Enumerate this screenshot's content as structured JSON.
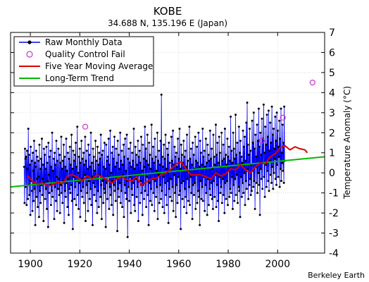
{
  "chart_data": {
    "type": "line",
    "title": "KOBE",
    "subtitle": "34.688 N, 135.196 E (Japan)",
    "xlabel": "",
    "ylabel": "Temperature Anomaly (°C)",
    "xlim": [
      1892,
      2019
    ],
    "ylim": [
      -4,
      7
    ],
    "x_ticks": [
      1900,
      1920,
      1940,
      1960,
      1980,
      2000
    ],
    "y_ticks": [
      -4,
      -3,
      -2,
      -1,
      0,
      1,
      2,
      3,
      4,
      5,
      6,
      7
    ],
    "grid": true,
    "legend_position": "top-left",
    "credit": "Berkeley Earth",
    "colors": {
      "raw": "#0000ee",
      "raw_marker": "#000000",
      "qc": "#cc33cc",
      "moving_average": "#dd0000",
      "trend": "#00bb00"
    },
    "series": [
      {
        "name": "Raw Monthly Data",
        "sample_every_months": 2,
        "x_start": 1897.5,
        "values": [
          0.3,
          -1.5,
          1.2,
          0.7,
          -0.7,
          0.8,
          -1.6,
          1.1,
          0.2,
          -1.3,
          2.2,
          -0.6,
          0.9,
          -1.1,
          0.4,
          -2.1,
          1.3,
          -0.4,
          0.6,
          -0.9,
          -1.9,
          1.0,
          0.1,
          -1.4,
          1.6,
          -0.8,
          0.5,
          -2.6,
          0.3,
          1.1,
          -1.2,
          -0.3,
          0.8,
          -1.7,
          0.6,
          -0.2,
          -2.2,
          1.4,
          -0.9,
          0.2,
          -1.5,
          0.7,
          -0.6,
          1.7,
          -1.1,
          -0.3,
          0.4,
          -2.4,
          1.2,
          -0.5,
          0.9,
          -1.3,
          0.2,
          -0.8,
          1.3,
          -1.8,
          0.5,
          -0.4,
          -2.7,
          1.5,
          -0.1,
          -1.0,
          0.8,
          -0.6,
          1.1,
          -1.6,
          0.3,
          -0.9,
          2.0,
          -1.2,
          0.1,
          -0.5,
          0.7,
          -2.3,
          1.0,
          -0.7,
          0.4,
          -1.4,
          1.6,
          -0.2,
          -1.9,
          0.6,
          -0.8,
          1.2,
          -0.3,
          -1.1,
          0.9,
          -2.0,
          0.5,
          -0.6,
          1.8,
          -1.0,
          0.2,
          -1.5,
          0.6,
          -0.4,
          1.4,
          -2.5,
          0.8,
          -0.9,
          0.3,
          -1.2,
          1.7,
          -0.5,
          0.1,
          -1.7,
          1.0,
          -0.3,
          -2.1,
          0.7,
          -0.8,
          1.3,
          -1.0,
          0.4,
          -0.6,
          1.9,
          -1.4,
          0.2,
          -2.8,
          1.1,
          -0.2,
          0.6,
          -1.3,
          0.9,
          -0.7,
          1.5,
          -1.6,
          0.3,
          -0.4,
          2.3,
          -1.1,
          0.0,
          -1.8,
          0.8,
          -0.5,
          1.2,
          -2.2,
          0.5,
          -0.9,
          1.6,
          -0.3,
          -1.2,
          0.7,
          -0.7,
          1.0,
          -1.5,
          0.4,
          -0.1,
          1.8,
          -2.4,
          0.6,
          -0.6,
          1.1,
          -1.0,
          0.2,
          -1.9,
          1.4,
          -0.4,
          0.9,
          -1.3,
          0.3,
          -0.8,
          2.0,
          -1.6,
          0.5,
          -0.2,
          -2.6,
          1.2,
          -0.5,
          0.8,
          -1.1,
          0.1,
          -0.7,
          1.6,
          -1.4,
          0.6,
          -0.3,
          -2.0,
          1.3,
          -0.9,
          0.4,
          -1.7,
          1.0,
          -0.1,
          0.7,
          -1.2,
          1.9,
          -0.6,
          -2.3,
          0.9,
          -0.4,
          1.1,
          -1.5,
          0.3,
          -0.8,
          1.5,
          -1.0,
          0.2,
          -2.7,
          1.4,
          -0.5,
          0.6,
          -1.3,
          0.8,
          -0.2,
          1.7,
          -1.8,
          0.4,
          -0.7,
          2.1,
          -1.1,
          0.0,
          -1.6,
          1.0,
          -0.4,
          1.3,
          -2.1,
          0.7,
          -0.6,
          1.8,
          -0.9,
          0.3,
          -1.4,
          1.2,
          -0.3,
          0.5,
          -2.9,
          1.6,
          -0.8,
          0.9,
          -1.2,
          0.2,
          -0.5,
          2.0,
          -1.5,
          0.6,
          -0.9,
          1.1,
          -1.7,
          0.4,
          -0.1,
          1.4,
          -2.2,
          0.8,
          -0.6,
          1.7,
          -1.0,
          0.1,
          -1.3,
          1.9,
          -0.4,
          -3.2,
          0.7,
          -0.7,
          1.2,
          -1.4,
          0.5,
          -0.2,
          1.5,
          -2.0,
          0.3,
          -0.8,
          1.0,
          -1.1,
          0.6,
          -0.5,
          2.2,
          -1.6,
          0.2,
          -1.9,
          1.3,
          -0.3,
          0.9,
          -1.2,
          0.4,
          -0.7,
          1.6,
          -2.4,
          0.8,
          -0.1,
          1.1,
          -1.5,
          0.5,
          -0.4,
          1.8,
          -1.0,
          0.1,
          -2.1,
          1.4,
          -0.6,
          0.7,
          -1.3,
          0.3,
          2.3,
          -0.9,
          1.2,
          -1.7,
          0.6,
          -0.2,
          1.9,
          -1.1,
          0.4,
          -2.6,
          1.5,
          -0.5,
          0.9,
          -1.4,
          0.2,
          -0.8,
          2.4,
          -1.6,
          0.7,
          -0.3,
          1.3,
          -1.0,
          0.5,
          -1.9,
          1.7,
          -0.4,
          0.8,
          -1.2,
          0.1,
          -0.7,
          2.0,
          -2.3,
          0.6,
          -0.1,
          1.1,
          -1.5,
          0.4,
          -0.6,
          1.6,
          -1.3,
          3.9,
          -0.9,
          0.8,
          -1.7,
          0.3,
          -0.2,
          1.4,
          -2.0,
          0.7,
          -0.5,
          1.9,
          -1.1,
          0.2,
          -1.6,
          1.2,
          -0.4,
          0.9,
          -2.5,
          1.5,
          -0.8,
          0.5,
          -1.2,
          0.1,
          -0.3,
          1.8,
          -1.4,
          0.6,
          -0.7,
          2.1,
          -1.9,
          0.4,
          -0.1,
          1.3,
          -1.0,
          0.8,
          -2.2,
          1.0,
          -0.6,
          0.3,
          -1.5,
          1.7,
          -0.2,
          0.7,
          -1.1,
          2.2,
          -0.9,
          0.2,
          -2.8,
          1.4,
          -0.5,
          0.9,
          -1.3,
          0.5,
          -0.4,
          1.6,
          -1.7,
          0.8,
          -0.8,
          1.1,
          -1.2,
          0.3,
          -2.0,
          1.9,
          -0.3,
          0.6,
          -1.4,
          0.1,
          -0.7,
          2.3,
          -1.6,
          0.7,
          -0.2,
          1.2,
          -1.0,
          0.4,
          -2.3,
          1.5,
          -0.6,
          0.9,
          -1.1,
          0.2,
          -0.5,
          1.8,
          -1.8,
          0.6,
          -0.1,
          1.3,
          -1.5,
          0.5,
          -0.9,
          2.0,
          -1.2,
          0.3,
          -2.6,
          1.6,
          -0.4,
          1.0,
          -1.3,
          0.4,
          -0.7,
          2.2,
          -1.4,
          0.8,
          -0.2,
          1.1,
          -1.9,
          0.3,
          -0.6,
          1.7,
          -1.0,
          0.5,
          -2.1,
          1.4,
          -0.3,
          0.9,
          -1.6,
          0.6,
          -0.8,
          2.1,
          -1.1,
          0.7,
          -0.5,
          1.2,
          -1.3,
          0.2,
          -1.8,
          1.9,
          -0.4,
          0.8,
          -1.2,
          0.4,
          -0.1,
          2.4,
          -1.7,
          0.9,
          -0.6,
          1.5,
          -1.4,
          0.5,
          -2.4,
          1.8,
          -0.2,
          1.0,
          -1.0,
          0.3,
          -0.7,
          2.0,
          -1.5,
          0.6,
          -0.3,
          1.4,
          -1.1,
          0.7,
          -2.0,
          2.2,
          -0.5,
          0.9,
          -1.3,
          0.4,
          -0.4,
          1.7,
          -1.6,
          0.8,
          0.1,
          1.3,
          -1.2,
          0.6,
          -0.8,
          2.8,
          -1.0,
          1.1,
          -0.2,
          0.5,
          -1.8,
          2.0,
          -0.6,
          1.2,
          -1.4,
          0.7,
          -0.3,
          2.9,
          -1.1,
          0.9,
          -0.1,
          1.5,
          -1.5,
          0.4,
          -0.7,
          2.3,
          -0.9,
          1.0,
          -2.2,
          1.6,
          -0.2,
          0.8,
          -1.2,
          0.5,
          -0.5,
          2.1,
          -1.0,
          1.3,
          0.0,
          1.8,
          -1.6,
          0.6,
          -0.4,
          2.5,
          -0.8,
          3.5,
          0.2,
          1.4,
          -1.3,
          0.9,
          -0.6,
          2.2,
          -0.3,
          1.1,
          -1.1,
          0.4,
          -0.9,
          2.6,
          0.1,
          1.5,
          -0.7,
          3.0,
          -0.4,
          1.2,
          -1.8,
          1.9,
          0.3,
          0.8,
          -0.5,
          2.4,
          -1.0,
          1.6,
          0.0,
          3.2,
          -0.6,
          1.3,
          -2.1,
          2.0,
          0.2,
          0.9,
          -0.3,
          2.7,
          -0.8,
          1.7,
          0.5,
          3.4,
          -0.2,
          1.0,
          -1.2,
          2.3,
          0.4,
          1.4,
          -0.7,
          2.9,
          0.1,
          1.8,
          -0.4,
          3.1,
          -0.9,
          1.1,
          0.6,
          2.5,
          -0.1,
          1.5,
          -0.5,
          3.3,
          0.3,
          1.9,
          -0.8,
          2.2,
          0.0,
          1.2,
          0.7,
          2.8,
          -0.3,
          1.6,
          -0.6,
          3.0,
          0.4,
          2.1,
          -0.2,
          1.3,
          0.8,
          2.6,
          -0.7,
          1.7,
          0.2,
          3.2,
          -0.4,
          1.0,
          0.5,
          2.4,
          0.1,
          1.5,
          -0.5,
          3.3,
          0.6
        ]
      },
      {
        "name": "Quality Control Fail",
        "x": [
          1922.2,
          1993.6,
          2002.1,
          2014.1
        ],
        "values": [
          2.3,
          1.6,
          2.75,
          4.5
        ]
      },
      {
        "name": "Five Year Moving Average",
        "x": [
          1899,
          1901,
          1903,
          1905,
          1907,
          1909,
          1911,
          1913,
          1915,
          1917,
          1919,
          1921,
          1923,
          1925,
          1927,
          1929,
          1931,
          1933,
          1935,
          1937,
          1939,
          1941,
          1943,
          1945,
          1947,
          1949,
          1951,
          1953,
          1955,
          1957,
          1959,
          1961,
          1963,
          1965,
          1967,
          1969,
          1971,
          1973,
          1975,
          1977,
          1979,
          1981,
          1983,
          1985,
          1987,
          1989,
          1991,
          1993,
          1995,
          1997,
          1999,
          2001,
          2003,
          2005,
          2007,
          2009,
          2011,
          2012
        ],
        "values": [
          -0.15,
          -0.45,
          -0.55,
          -0.5,
          -0.65,
          -0.6,
          -0.45,
          -0.55,
          -0.15,
          -0.1,
          -0.2,
          -0.4,
          -0.15,
          -0.3,
          -0.1,
          -0.2,
          -0.35,
          -0.5,
          -0.3,
          -0.2,
          -0.35,
          -0.4,
          -0.2,
          -0.65,
          -0.45,
          -0.3,
          -0.25,
          -0.1,
          0.0,
          0.2,
          0.45,
          0.55,
          0.2,
          -0.1,
          -0.1,
          -0.1,
          -0.2,
          -0.3,
          0.0,
          -0.15,
          -0.05,
          0.2,
          0.15,
          0.4,
          0.15,
          0.0,
          0.3,
          0.5,
          0.45,
          0.8,
          0.95,
          1.25,
          1.35,
          1.15,
          1.3,
          1.2,
          1.15,
          1.0
        ]
      },
      {
        "name": "Long-Term Trend",
        "x": [
          1892,
          2019
        ],
        "values": [
          -0.7,
          0.8
        ]
      }
    ]
  }
}
